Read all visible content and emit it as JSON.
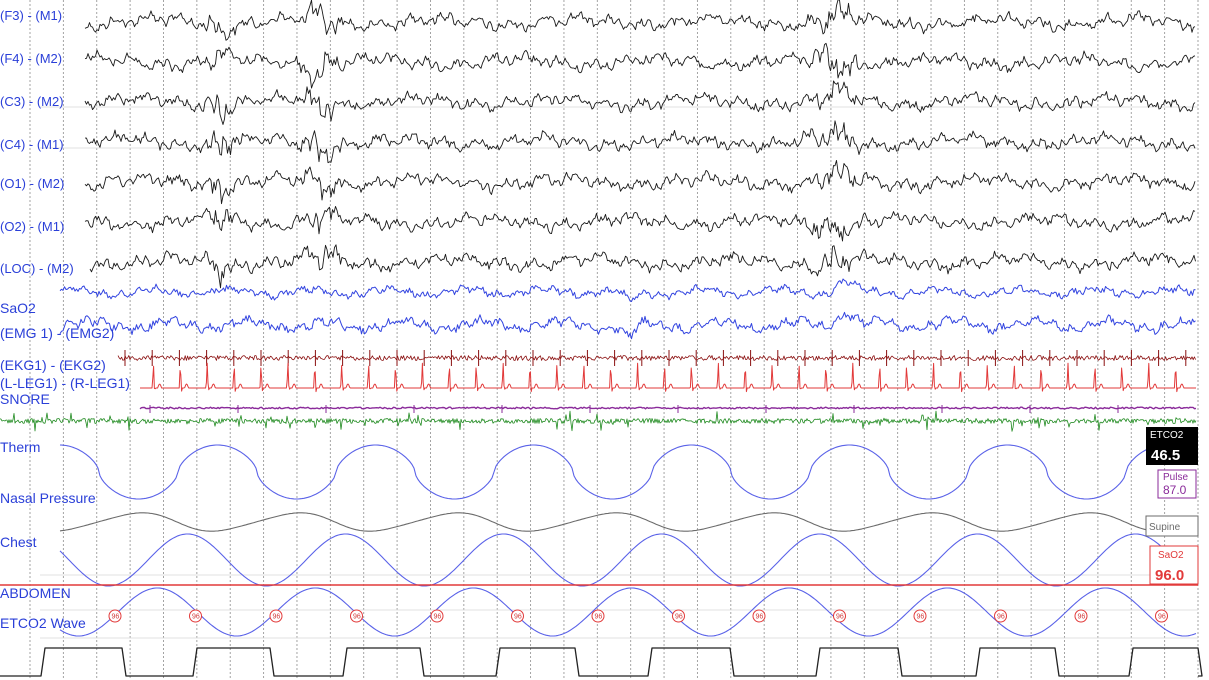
{
  "chart_data": {
    "type": "line",
    "title": "",
    "channels": [
      {
        "name": "(F3) - (M1)",
        "kind": "eeg"
      },
      {
        "name": "(F4) - (M2)",
        "kind": "eeg"
      },
      {
        "name": "(C3) - (M2)",
        "kind": "eeg"
      },
      {
        "name": "(C4) - (M1)",
        "kind": "eeg"
      },
      {
        "name": "(O1) - (M2)",
        "kind": "eeg"
      },
      {
        "name": "(O2) - (M1)",
        "kind": "eeg"
      },
      {
        "name": "(LOC) - (M2)",
        "kind": "eeg"
      },
      {
        "name": "SaO2",
        "kind": "eog"
      },
      {
        "name": "(EMG 1) - (EMG2)",
        "kind": "eog"
      },
      {
        "name": "(EKG1) - (EKG2)",
        "kind": "emg"
      },
      {
        "name": "(L-LEG1) - (R-LEG1)",
        "kind": "ekg"
      },
      {
        "name": "SNORE",
        "kind": "leg"
      },
      {
        "name": "Therm",
        "kind": "snore"
      },
      {
        "name": "Nasal Pressure",
        "kind": "resp"
      },
      {
        "name": "Chest",
        "kind": "resp"
      },
      {
        "name": "ABDOMEN",
        "kind": "resp"
      },
      {
        "name": "ETCO2 Wave",
        "kind": "etco2"
      }
    ],
    "epoch_gridlines": 36,
    "sao2_marker_value": "96",
    "sao2_marker_count": 14
  },
  "readouts": {
    "etco2": {
      "label": "ETCO2",
      "value": "46.5"
    },
    "pulse": {
      "label": "Pulse",
      "value": "87.0"
    },
    "position": {
      "label": "Supine"
    },
    "sao2": {
      "label": "SaO2",
      "value": "96.0"
    }
  },
  "colors": {
    "eeg": "#1a1a1a",
    "eog": "#3345e0",
    "emg": "#8b1010",
    "ekg": "#e23a3a",
    "leg": "#8a2a9a",
    "snore": "#1f8a1f",
    "resp": "#5a62e8",
    "grey": "#6b6b6b",
    "label": "#2a3fd8",
    "sao2_line": "#e23a3a"
  }
}
